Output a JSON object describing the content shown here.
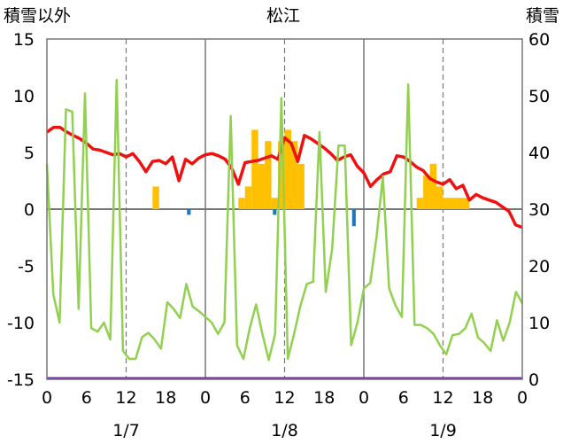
{
  "chart_data": {
    "type": "bar+line",
    "title": "松江",
    "left_axis_label": "積雪以外",
    "right_axis_label": "積雪",
    "left_ylim": [
      -15,
      15
    ],
    "left_yticks": [
      15,
      10,
      5,
      0,
      -5,
      -10,
      -15
    ],
    "right_ylim": [
      0,
      60
    ],
    "right_yticks": [
      60,
      50,
      40,
      30,
      20,
      10,
      0
    ],
    "x_range_hours": [
      0,
      72
    ],
    "x_tick_labels": [
      "0",
      "6",
      "12",
      "18",
      "0",
      "6",
      "12",
      "18",
      "0",
      "6",
      "12",
      "18",
      "0"
    ],
    "day_labels": [
      "1/7",
      "1/8",
      "1/9"
    ],
    "grid": "dashed at 12h, solid at day boundaries",
    "colors": {
      "temperature": "#ee1111",
      "wind": "#92d050",
      "snow_bar": "#ffc000",
      "negative_bar": "#1f77b4",
      "baseline": "#7030a0",
      "zero_line": "#777777",
      "grid": "#777777"
    },
    "series": [
      {
        "name": "temperature",
        "type": "line",
        "axis": "left",
        "values": [
          6.8,
          7.2,
          7.2,
          6.8,
          6.5,
          6.2,
          5.8,
          5.3,
          5.2,
          5.0,
          4.8,
          4.9,
          4.6,
          4.9,
          4.2,
          3.3,
          4.2,
          4.3,
          4.0,
          4.6,
          2.5,
          4.4,
          4.0,
          4.5,
          4.8,
          4.9,
          4.7,
          4.4,
          3.6,
          2.2,
          4.1,
          4.2,
          4.3,
          4.5,
          4.7,
          4.4,
          6.3,
          5.8,
          4.2,
          6.5,
          6.2,
          5.8,
          5.4,
          4.9,
          4.3,
          4.6,
          4.8,
          3.8,
          3.2,
          2.0,
          2.6,
          3.1,
          3.3,
          4.7,
          4.6,
          4.2,
          3.7,
          3.4,
          2.7,
          2.4,
          2.2,
          2.6,
          1.8,
          2.1,
          0.8,
          1.3,
          1.0,
          0.8,
          0.6,
          0.2,
          -0.2,
          -1.4,
          -1.6
        ]
      },
      {
        "name": "wind",
        "type": "line",
        "axis": "left",
        "values": [
          4.0,
          -7.5,
          -10,
          8.8,
          8.6,
          -8.8,
          10.2,
          -10.5,
          -10.8,
          -10,
          -11.5,
          11.4,
          -12.5,
          -13.2,
          -13.2,
          -11.3,
          -10.9,
          -11.5,
          -12.3,
          -8.2,
          -8.8,
          -9.6,
          -6.6,
          -8.6,
          -9.0,
          -9.5,
          -10.0,
          -11.0,
          -10.0,
          8.2,
          -12,
          -13.2,
          -10.5,
          -8.4,
          -11,
          -13.3,
          -11,
          9.8,
          -13.2,
          -11,
          -8.5,
          -6.6,
          -6.4,
          6.8,
          -7.3,
          -3.5,
          5.6,
          5.6,
          -12,
          -10,
          -7,
          -6.5,
          -2.5,
          2.9,
          -7,
          -8.5,
          -9.5,
          11,
          -10.2,
          -10.2,
          -10.5,
          -11,
          -12,
          -12.8,
          -11.1,
          -11.0,
          -10.5,
          -9.2,
          -11.3,
          -11.8,
          -12.5,
          -9.8,
          -11.6,
          -10,
          -7.3,
          -8.3
        ]
      },
      {
        "name": "snow_depth",
        "type": "bar",
        "axis": "left",
        "points": [
          {
            "x": 16,
            "y": 2
          },
          {
            "x": 29,
            "y": 1
          },
          {
            "x": 30,
            "y": 2
          },
          {
            "x": 31,
            "y": 7
          },
          {
            "x": 32,
            "y": 4
          },
          {
            "x": 33,
            "y": 6
          },
          {
            "x": 34,
            "y": 1
          },
          {
            "x": 35,
            "y": 6
          },
          {
            "x": 36,
            "y": 7
          },
          {
            "x": 37,
            "y": 6
          },
          {
            "x": 38,
            "y": 4
          },
          {
            "x": 56,
            "y": 1
          },
          {
            "x": 57,
            "y": 3
          },
          {
            "x": 58,
            "y": 4
          },
          {
            "x": 59,
            "y": 2
          },
          {
            "x": 60,
            "y": 1
          },
          {
            "x": 61,
            "y": 1
          },
          {
            "x": 62,
            "y": 1
          },
          {
            "x": 63,
            "y": 1
          }
        ]
      },
      {
        "name": "negative",
        "type": "bar",
        "axis": "left",
        "points": [
          {
            "x": 21,
            "y": -0.5
          },
          {
            "x": 34,
            "y": -0.5
          },
          {
            "x": 46,
            "y": -1.5
          }
        ]
      }
    ]
  }
}
